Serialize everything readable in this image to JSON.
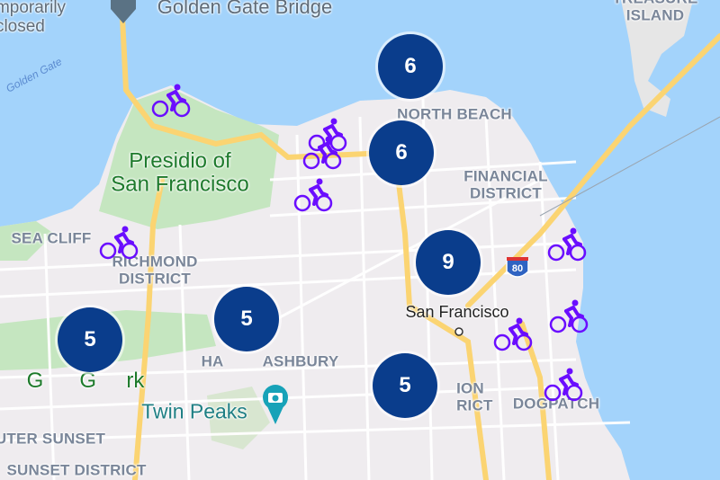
{
  "map": {
    "labels": {
      "temporarily_closed": "mporarily\nclosed",
      "golden_gate_bridge": "Golden Gate Bridge",
      "treasure_island": "TREASURE\nISLAND",
      "golden_gate_water": "Golden Gate",
      "north_beach": "NORTH BEACH",
      "presidio": "Presidio of\nSan Francisco",
      "financial_district": "FINANCIAL\nDISTRICT",
      "sea_cliff": "SEA CLIFF",
      "richmond_district": "RICHMOND\nDISTRICT",
      "golden_gate_park": "G      G     rk",
      "haight_ashbury": "HA         ASHBURY",
      "san_francisco": "San Francisco",
      "twin_peaks": "Twin Peaks",
      "mission_district": "     ION\n     RICT",
      "dogpatch": "DOGPATCH",
      "outer_sunset": "UTER SUNSET",
      "sunset_district": "SUNSET DISTRICT",
      "interstate": "80"
    },
    "clusters": [
      {
        "count": "6"
      },
      {
        "count": "6"
      },
      {
        "count": "9"
      },
      {
        "count": "5"
      },
      {
        "count": "5"
      },
      {
        "count": "5"
      }
    ],
    "bike_icon": "bicycle-icon",
    "colors": {
      "cluster": "#0a3d8c",
      "bike": "#6a0dff",
      "water": "#a3d3fb",
      "land": "#efecef",
      "park": "#c5e6c0",
      "highway": "#fbd472"
    }
  }
}
